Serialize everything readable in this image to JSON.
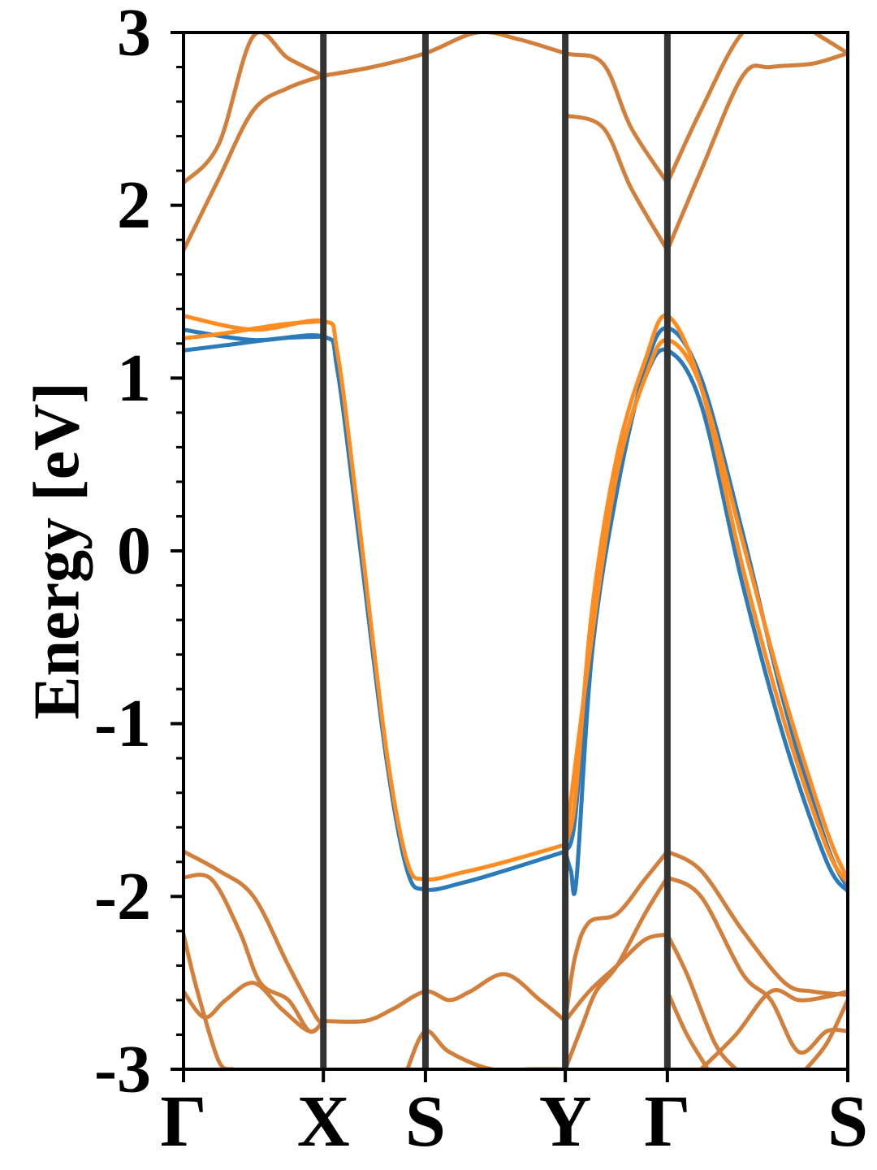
{
  "chart_data": {
    "type": "line",
    "title": "",
    "xlabel": "",
    "ylabel": "Energy [eV]",
    "ylim": [
      -3,
      3
    ],
    "xlim": [
      0,
      4.75
    ],
    "grid": false,
    "legend": "none",
    "y_ticks": [
      {
        "value": 3,
        "label": "3"
      },
      {
        "value": 2,
        "label": "2"
      },
      {
        "value": 1,
        "label": "1"
      },
      {
        "value": 0,
        "label": "0"
      },
      {
        "value": -1,
        "label": "-1"
      },
      {
        "value": -2,
        "label": "-2"
      },
      {
        "value": -3,
        "label": "-3"
      }
    ],
    "y_minor_step": 0.2,
    "high_symmetry_points": [
      {
        "x": 0.0,
        "label": "Γ",
        "line": false
      },
      {
        "x": 1.0,
        "label": "X",
        "line": true
      },
      {
        "x": 1.73,
        "label": "S",
        "line": true
      },
      {
        "x": 2.73,
        "label": "Y",
        "line": true
      },
      {
        "x": 3.46,
        "label": "Γ",
        "line": true
      },
      {
        "x": 4.75,
        "label": "S",
        "line": false
      }
    ],
    "colors": {
      "blue": "#2b7bba",
      "orange": "#ff8c21",
      "shared": "#d17f3b",
      "divider": "#333333"
    },
    "series": [
      {
        "color": "blue",
        "x": [
          0,
          0.5,
          1.0,
          1.1,
          1.25,
          1.45,
          1.6,
          1.73,
          2.0,
          2.3,
          2.73
        ],
        "y": [
          1.28,
          1.22,
          1.24,
          1.05,
          0.1,
          -1.2,
          -1.85,
          -1.96,
          -1.92,
          -1.85,
          -1.74
        ]
      },
      {
        "color": "blue",
        "x": [
          0,
          0.3,
          0.7,
          1.0
        ],
        "y": [
          1.16,
          1.19,
          1.23,
          1.24
        ]
      },
      {
        "color": "blue",
        "x": [
          2.73,
          2.8,
          2.92,
          3.1,
          3.3,
          3.46,
          3.7,
          4.0,
          4.3,
          4.6,
          4.75
        ],
        "y": [
          -1.74,
          -1.55,
          -0.45,
          0.45,
          1.0,
          1.16,
          0.85,
          -0.2,
          -1.1,
          -1.8,
          -1.97
        ]
      },
      {
        "color": "blue",
        "x": [
          2.73,
          2.77,
          2.81,
          2.92,
          3.1,
          3.3,
          3.46,
          3.7,
          4.0,
          4.3,
          4.6,
          4.75
        ],
        "y": [
          -1.74,
          -1.85,
          -1.9,
          -0.6,
          0.35,
          1.05,
          1.29,
          1.0,
          0.1,
          -0.9,
          -1.7,
          -1.95
        ]
      },
      {
        "color": "orange",
        "x": [
          0,
          0.5,
          1.0,
          1.1,
          1.25,
          1.45,
          1.6,
          1.73,
          2.0,
          2.3,
          2.73
        ],
        "y": [
          1.36,
          1.28,
          1.33,
          1.15,
          0.2,
          -1.15,
          -1.8,
          -1.9,
          -1.86,
          -1.8,
          -1.7
        ]
      },
      {
        "color": "orange",
        "x": [
          0,
          0.3,
          0.7,
          1.0
        ],
        "y": [
          1.23,
          1.26,
          1.31,
          1.33
        ]
      },
      {
        "color": "orange",
        "x": [
          2.73,
          2.8,
          2.92,
          3.1,
          3.3,
          3.46,
          3.7,
          4.0,
          4.3,
          4.6,
          4.75
        ],
        "y": [
          -1.7,
          -1.45,
          -0.35,
          0.55,
          1.1,
          1.36,
          0.95,
          -0.1,
          -1.0,
          -1.72,
          -1.92
        ]
      },
      {
        "color": "orange",
        "x": [
          2.73,
          2.92,
          3.1,
          3.3,
          3.46,
          3.7,
          4.0,
          4.3,
          4.6,
          4.75
        ],
        "y": [
          -1.7,
          -0.5,
          0.45,
          1.0,
          1.22,
          0.95,
          0.05,
          -0.85,
          -1.62,
          -1.9
        ]
      },
      {
        "color": "shared",
        "x": [
          0,
          0.25,
          0.5,
          0.75,
          1.0
        ],
        "y": [
          1.74,
          2.15,
          2.55,
          2.68,
          2.75
        ]
      },
      {
        "color": "shared",
        "x": [
          0,
          0.25,
          0.5,
          0.75,
          1.0
        ],
        "y": [
          2.13,
          2.35,
          2.98,
          2.85,
          2.75
        ]
      },
      {
        "color": "shared",
        "x": [
          1.0,
          1.35,
          1.73,
          2.1,
          2.4,
          2.73,
          3.0,
          3.2,
          3.46
        ],
        "y": [
          2.75,
          2.8,
          2.88,
          3.0,
          2.96,
          2.88,
          2.82,
          2.45,
          2.13
        ]
      },
      {
        "color": "shared",
        "x": [
          2.73,
          3.0,
          3.2,
          3.46
        ],
        "y": [
          2.52,
          2.45,
          2.1,
          1.74
        ]
      },
      {
        "color": "shared",
        "x": [
          3.46,
          3.7,
          4.0,
          4.2,
          4.5,
          4.75
        ],
        "y": [
          1.74,
          2.2,
          2.75,
          2.8,
          2.82,
          2.88
        ]
      },
      {
        "color": "shared",
        "x": [
          3.46,
          3.7,
          4.0,
          4.3,
          4.55,
          4.75
        ],
        "y": [
          2.13,
          2.55,
          3.0,
          3.1,
          2.98,
          2.88
        ]
      },
      {
        "color": "shared",
        "x": [
          0,
          0.25,
          0.5,
          0.75,
          0.95,
          1.0
        ],
        "y": [
          -1.74,
          -1.85,
          -2.0,
          -2.4,
          -2.7,
          -2.72
        ]
      },
      {
        "color": "shared",
        "x": [
          0,
          0.2,
          0.4,
          0.55,
          0.75,
          0.9,
          1.0
        ],
        "y": [
          -1.89,
          -1.9,
          -2.2,
          -2.5,
          -2.6,
          -2.78,
          -2.72
        ]
      },
      {
        "color": "shared",
        "x": [
          0,
          0.1,
          0.25,
          0.35
        ],
        "y": [
          -2.22,
          -2.55,
          -2.95,
          -3.0
        ]
      },
      {
        "color": "shared",
        "x": [
          0,
          0.15,
          0.3,
          0.5,
          0.7,
          0.9,
          1.0
        ],
        "y": [
          -2.55,
          -2.7,
          -2.6,
          -2.5,
          -2.65,
          -2.78,
          -2.72
        ]
      },
      {
        "color": "shared",
        "x": [
          1.0,
          1.3,
          1.5,
          1.73,
          1.9,
          2.05,
          2.3,
          2.55,
          2.73
        ],
        "y": [
          -2.72,
          -2.72,
          -2.65,
          -2.55,
          -2.6,
          -2.55,
          -2.45,
          -2.6,
          -2.72
        ]
      },
      {
        "color": "shared",
        "x": [
          1.6,
          1.73,
          1.9,
          2.2,
          2.5,
          2.73
        ],
        "y": [
          -3.0,
          -2.78,
          -2.9,
          -3.0,
          -3.0,
          -3.0
        ]
      },
      {
        "color": "shared",
        "x": [
          2.73,
          2.8,
          2.9,
          3.1,
          3.3,
          3.46
        ],
        "y": [
          -2.72,
          -2.35,
          -2.15,
          -2.1,
          -1.9,
          -1.74
        ]
      },
      {
        "color": "shared",
        "x": [
          2.73,
          2.9,
          3.1,
          3.3,
          3.46
        ],
        "y": [
          -2.72,
          -2.55,
          -2.4,
          -2.25,
          -2.22
        ]
      },
      {
        "color": "shared",
        "x": [
          2.73,
          2.85,
          2.95,
          3.1,
          3.3,
          3.46
        ],
        "y": [
          -3.0,
          -2.75,
          -2.55,
          -2.4,
          -2.1,
          -1.89
        ]
      },
      {
        "color": "shared",
        "x": [
          3.46,
          3.7,
          4.0,
          4.3,
          4.5,
          4.75
        ],
        "y": [
          -1.74,
          -1.85,
          -2.2,
          -2.5,
          -2.55,
          -2.57
        ]
      },
      {
        "color": "shared",
        "x": [
          3.46,
          3.7,
          4.0,
          4.2,
          4.4,
          4.6,
          4.75
        ],
        "y": [
          -1.89,
          -2.0,
          -2.45,
          -2.6,
          -2.9,
          -2.78,
          -2.78
        ]
      },
      {
        "color": "shared",
        "x": [
          3.46,
          3.6,
          3.8,
          3.95
        ],
        "y": [
          -2.22,
          -2.45,
          -2.85,
          -3.0
        ]
      },
      {
        "color": "shared",
        "x": [
          3.46,
          3.6,
          3.75
        ],
        "y": [
          -2.55,
          -2.8,
          -3.0
        ]
      },
      {
        "color": "shared",
        "x": [
          3.7,
          3.95,
          4.2,
          4.4,
          4.6,
          4.75
        ],
        "y": [
          -3.0,
          -2.8,
          -2.55,
          -2.6,
          -2.58,
          -2.55
        ]
      },
      {
        "color": "shared",
        "x": [
          4.45,
          4.6,
          4.75
        ],
        "y": [
          -3.0,
          -2.85,
          -2.6
        ]
      }
    ]
  }
}
